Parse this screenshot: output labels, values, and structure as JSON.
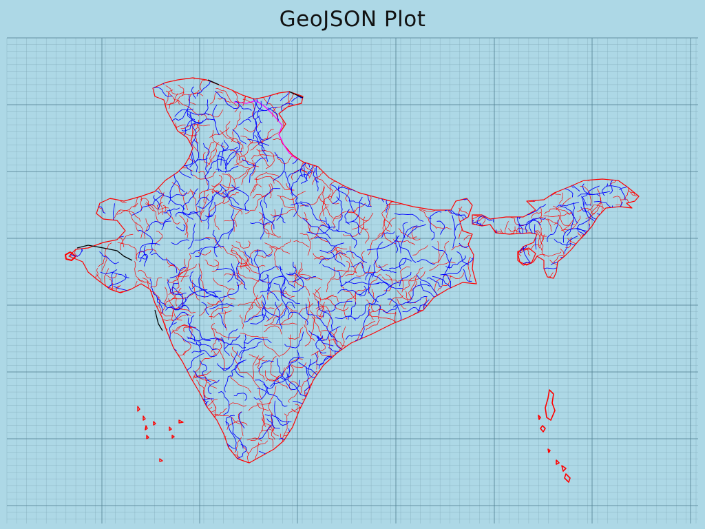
{
  "title": "GeoJSON Plot",
  "map": {
    "background_color": "#add8e6",
    "grid": true,
    "grid_minor_color": "#7fa7b6",
    "grid_major_color": "#4f7f90",
    "line_colors": {
      "minor_boundaries": "#ff0000",
      "major_boundaries": "#0000ff",
      "disputed_boundary": "#ff00ff",
      "edges": "#000000"
    }
  }
}
